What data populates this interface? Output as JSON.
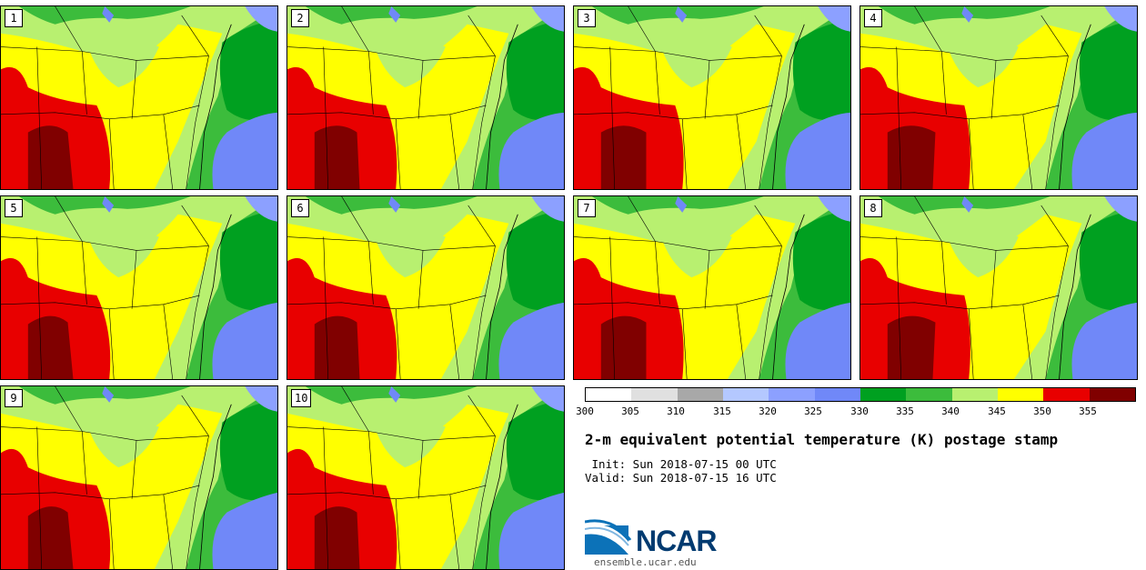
{
  "panels": [
    {
      "label": "1"
    },
    {
      "label": "2"
    },
    {
      "label": "3"
    },
    {
      "label": "4"
    },
    {
      "label": "5"
    },
    {
      "label": "6"
    },
    {
      "label": "7"
    },
    {
      "label": "8"
    },
    {
      "label": "9"
    },
    {
      "label": "10"
    }
  ],
  "colorbar": {
    "ticks": [
      "300",
      "305",
      "310",
      "315",
      "320",
      "325",
      "330",
      "335",
      "340",
      "345",
      "350",
      "355"
    ],
    "colors": [
      "#ffffff",
      "#e0e0e0",
      "#a8a8a8",
      "#b4c8ff",
      "#8ca0ff",
      "#7088f8",
      "#00a020",
      "#3cbc3c",
      "#b8f070",
      "#ffff00",
      "#e80000",
      "#800000"
    ]
  },
  "title": "2-m equivalent potential temperature (K) postage stamp",
  "init": " Init: Sun 2018-07-15 00 UTC",
  "valid": "Valid: Sun 2018-07-15 16 UTC",
  "logo": {
    "text": "NCAR",
    "site": "ensemble.ucar.edu"
  }
}
